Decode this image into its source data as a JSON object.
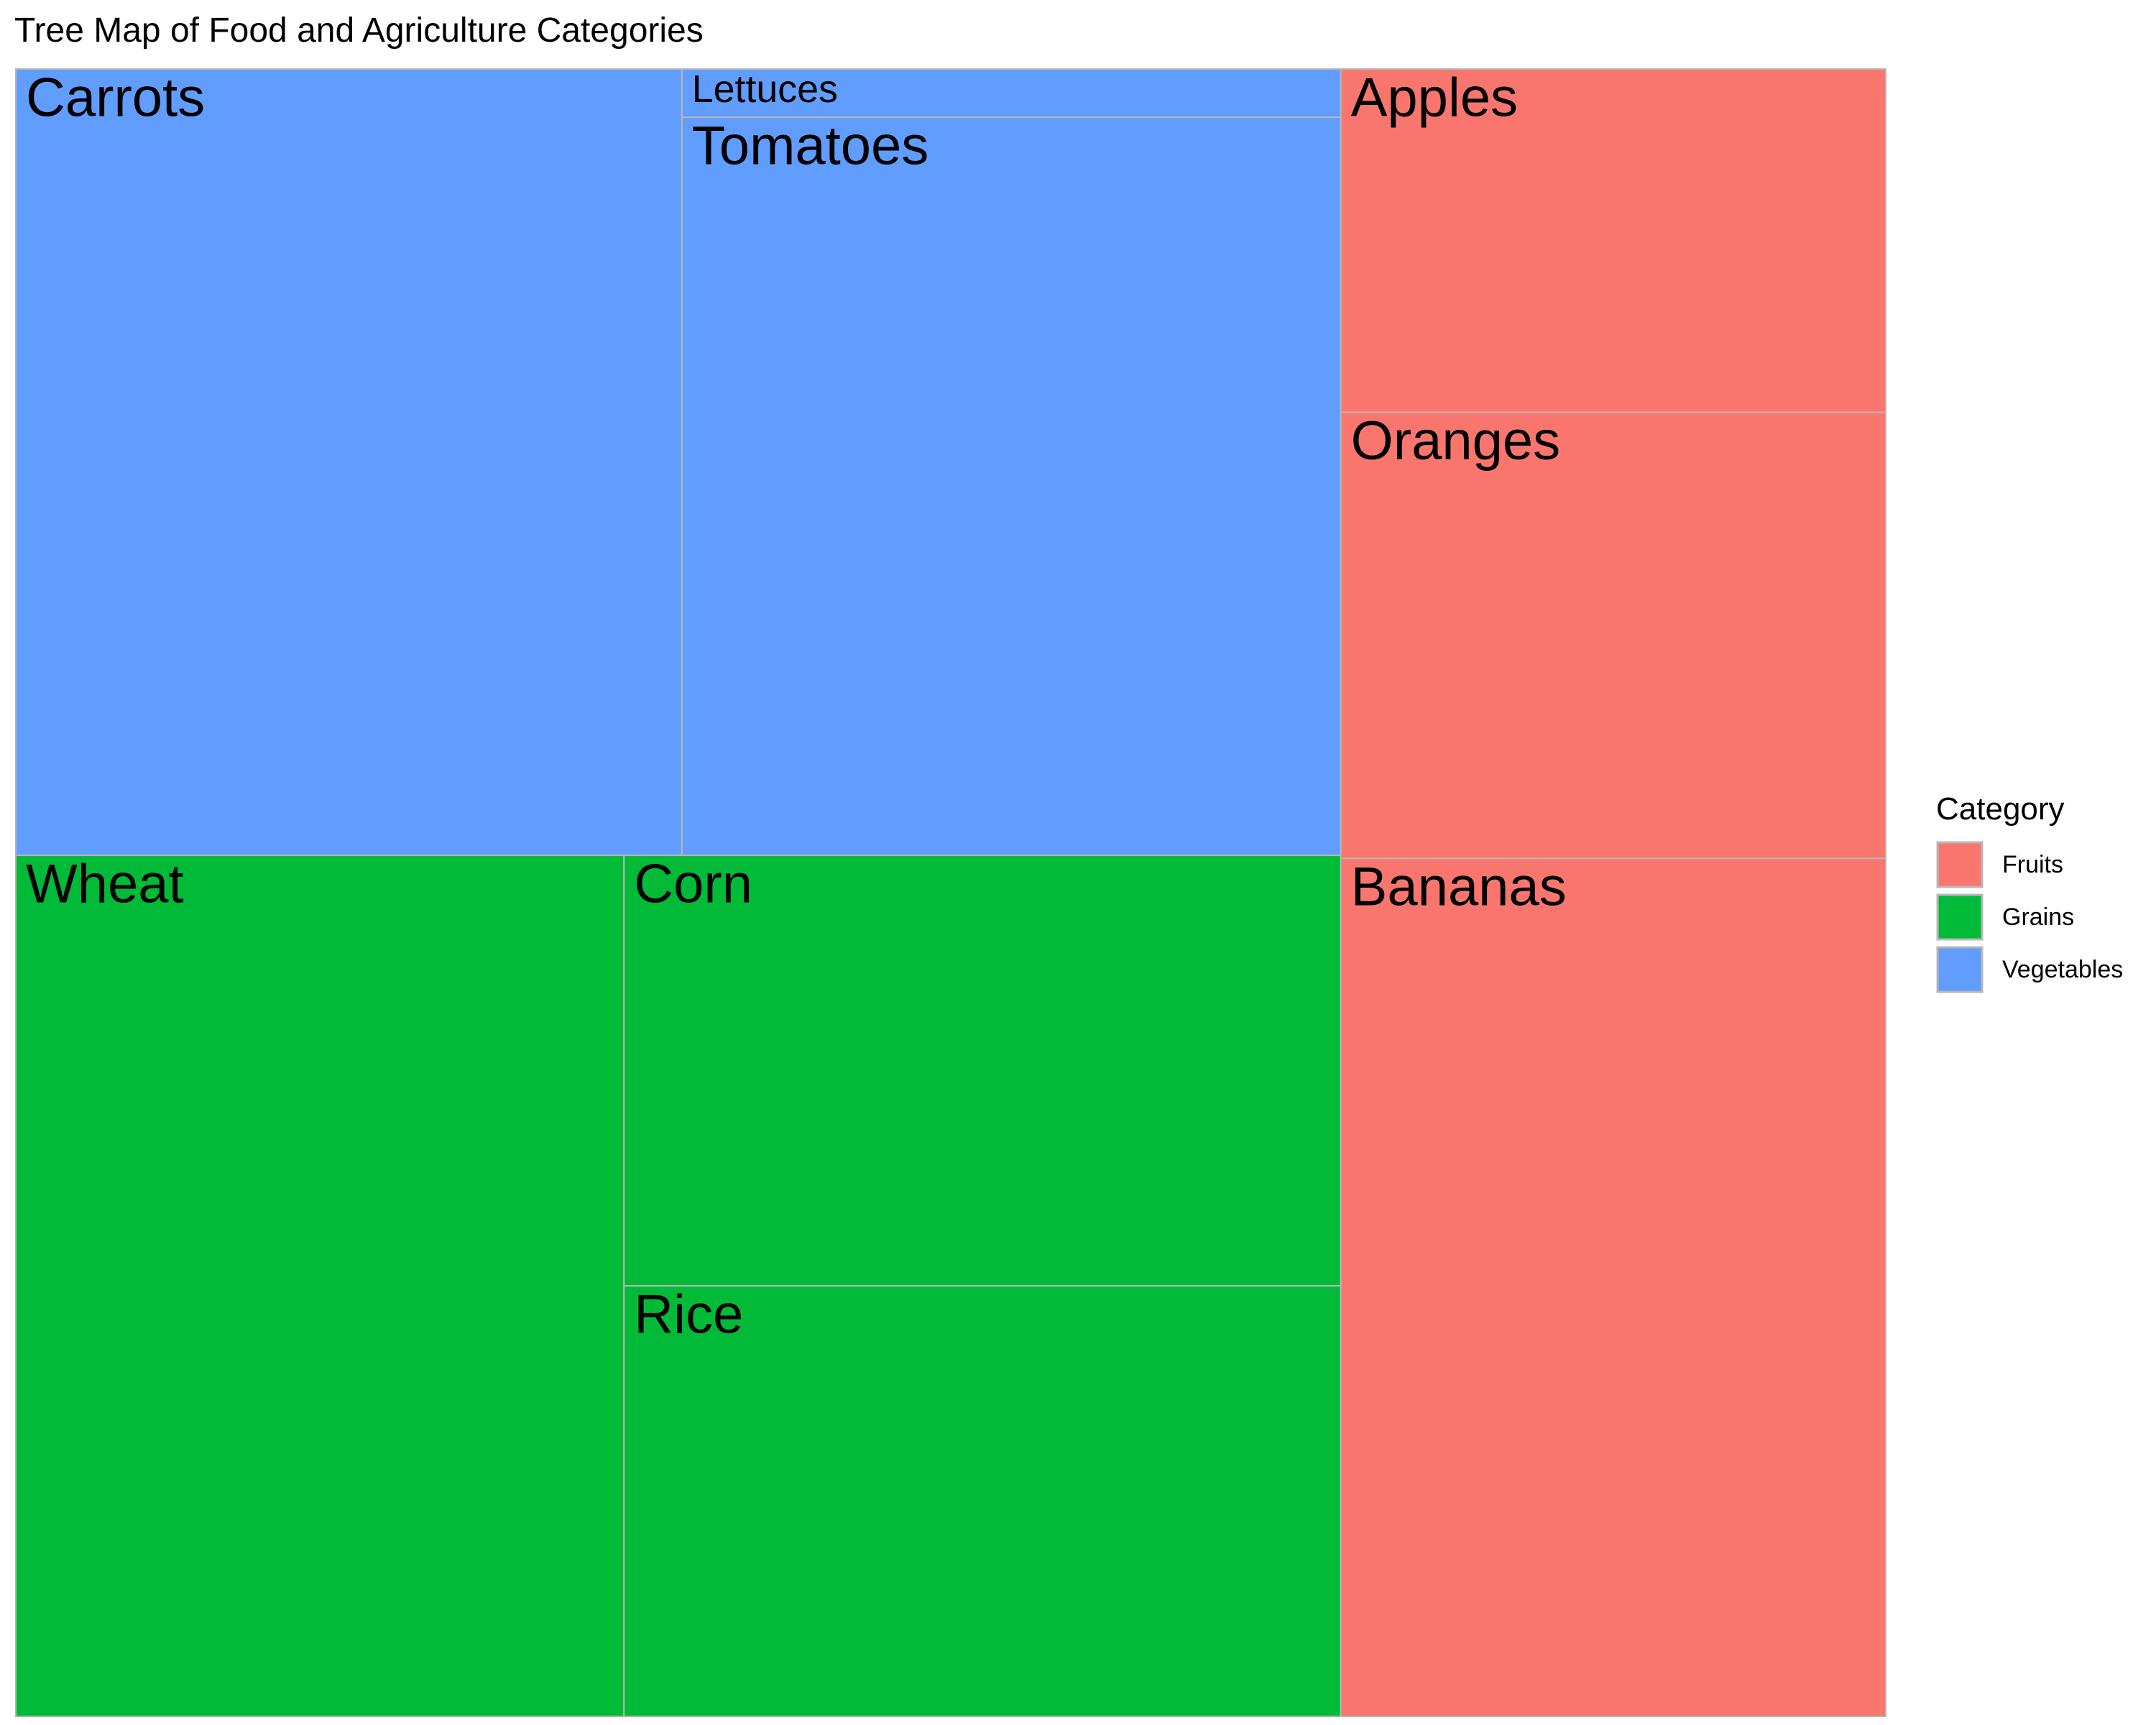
{
  "chart_data": {
    "type": "treemap",
    "title": "Tree Map of Food and Agriculture Categories",
    "legend": {
      "title": "Category",
      "position": "right",
      "entries": [
        {
          "name": "Fruits",
          "color": "#F8766D"
        },
        {
          "name": "Grains",
          "color": "#00BA38"
        },
        {
          "name": "Vegetables",
          "color": "#619CFF"
        }
      ]
    },
    "groups": [
      {
        "name": "Vegetables",
        "color": "#619CFF",
        "items": [
          {
            "label": "Carrots",
            "value": 28
          },
          {
            "label": "Tomatoes",
            "value": 26
          },
          {
            "label": "Lettuces",
            "value": 1.7
          }
        ]
      },
      {
        "name": "Grains",
        "color": "#00BA38",
        "items": [
          {
            "label": "Wheat",
            "value": 28
          },
          {
            "label": "Corn",
            "value": 16.5
          },
          {
            "label": "Rice",
            "value": 16.5
          }
        ]
      },
      {
        "name": "Fruits",
        "color": "#F8766D",
        "items": [
          {
            "label": "Apples",
            "value": 10
          },
          {
            "label": "Oranges",
            "value": 13
          },
          {
            "label": "Bananas",
            "value": 25
          }
        ]
      }
    ]
  }
}
